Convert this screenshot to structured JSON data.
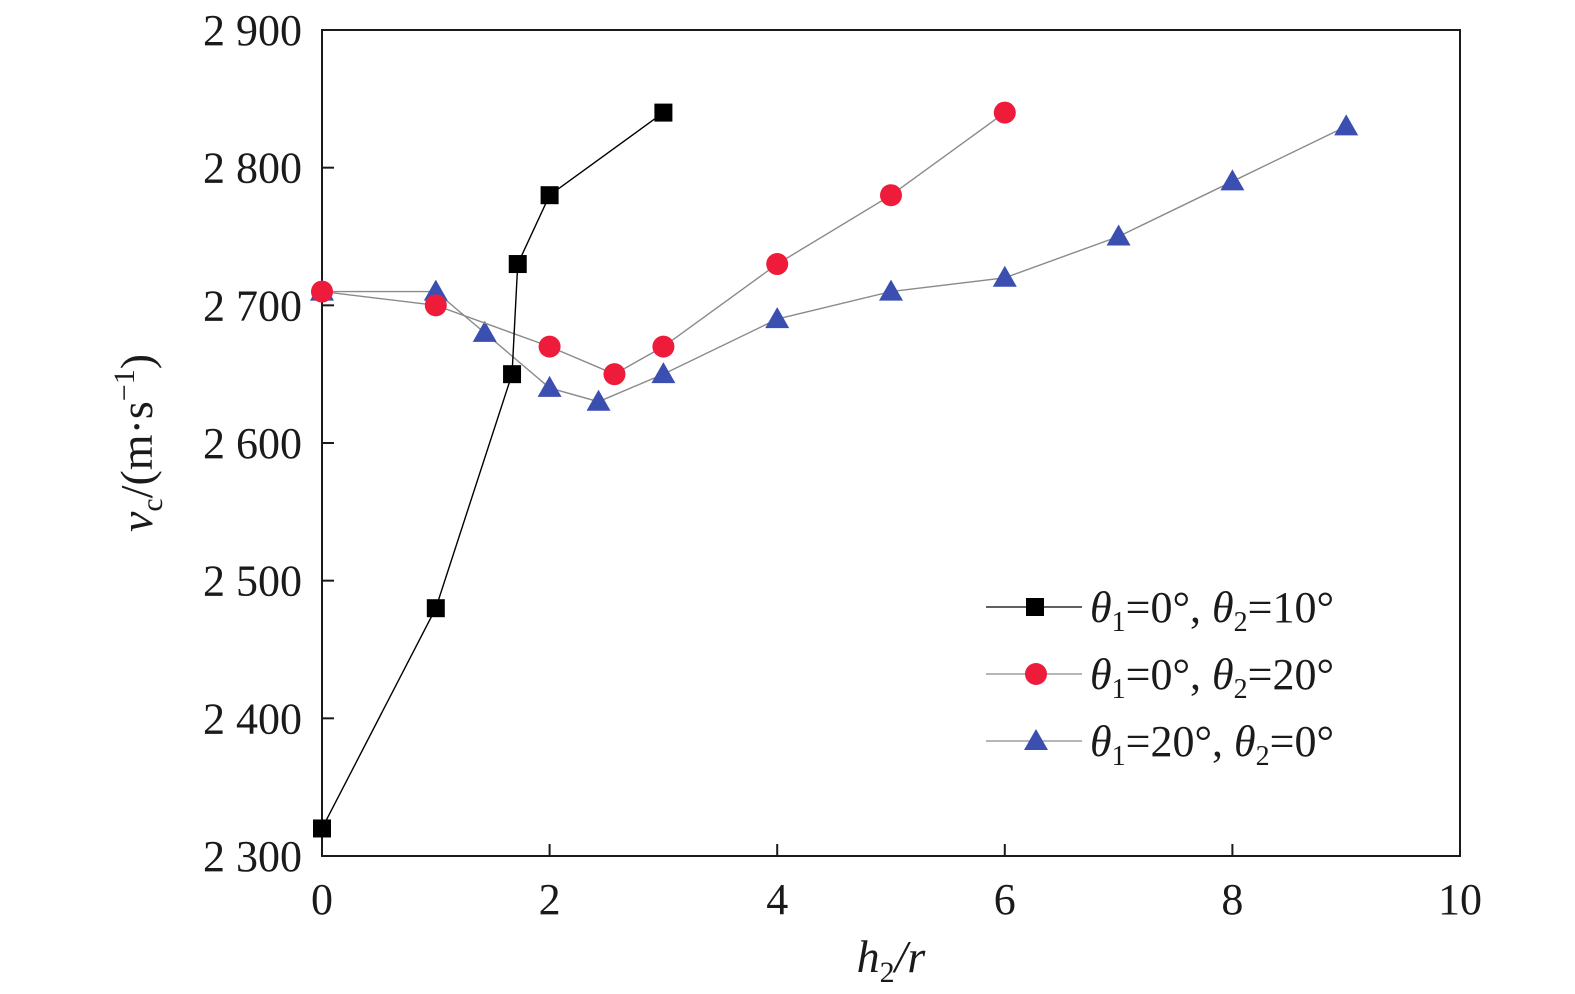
{
  "chart_data": {
    "type": "line",
    "xlabel": {
      "main": "h",
      "sub": "2",
      "rest": "/r"
    },
    "ylabel": {
      "main": "v",
      "sub": "c",
      "rest": "/(m·s",
      "sup": "−1",
      "close": ")"
    },
    "xlim": [
      0,
      10
    ],
    "ylim": [
      2300,
      2900
    ],
    "xticks": [
      0,
      2,
      4,
      6,
      8,
      10
    ],
    "xtick_labels": [
      "0",
      "2",
      "4",
      "6",
      "8",
      "10"
    ],
    "yticks": [
      2300,
      2400,
      2500,
      2600,
      2700,
      2800,
      2900
    ],
    "ytick_labels": [
      "2 300",
      "2 400",
      "2 500",
      "2 600",
      "2 700",
      "2 800",
      "2 900"
    ],
    "grid": false,
    "legend_position": "lower-right",
    "series": [
      {
        "name": "θ1=0°, θ2=10°",
        "legend": {
          "t1": "θ",
          "s1": "1",
          "m1": "=0°, ",
          "t2": "θ",
          "s2": "2",
          "m2": "=10°"
        },
        "marker": "square",
        "color": "#000000",
        "x": [
          0,
          1,
          1.67,
          1.72,
          2,
          3
        ],
        "y": [
          2320,
          2480,
          2650,
          2730,
          2780,
          2840
        ]
      },
      {
        "name": "θ1=0°, θ2=20°",
        "legend": {
          "t1": "θ",
          "s1": "1",
          "m1": "=0°, ",
          "t2": "θ",
          "s2": "2",
          "m2": "=20°"
        },
        "marker": "circle",
        "color": "#ee1c3a",
        "x": [
          0,
          1,
          2,
          2.57,
          3,
          4,
          5,
          6
        ],
        "y": [
          2710,
          2700,
          2670,
          2650,
          2670,
          2730,
          2780,
          2840
        ]
      },
      {
        "name": "θ1=20°, θ2=0°",
        "legend": {
          "t1": "θ",
          "s1": "1",
          "m1": "=20°, ",
          "t2": "θ",
          "s2": "2",
          "m2": "=0°"
        },
        "marker": "triangle",
        "color": "#3a4fb0",
        "x": [
          0,
          1,
          1.43,
          2,
          2.43,
          3,
          4,
          5,
          6,
          7,
          8,
          9
        ],
        "y": [
          2710,
          2710,
          2680,
          2640,
          2630,
          2650,
          2690,
          2710,
          2720,
          2750,
          2790,
          2830
        ]
      }
    ]
  }
}
